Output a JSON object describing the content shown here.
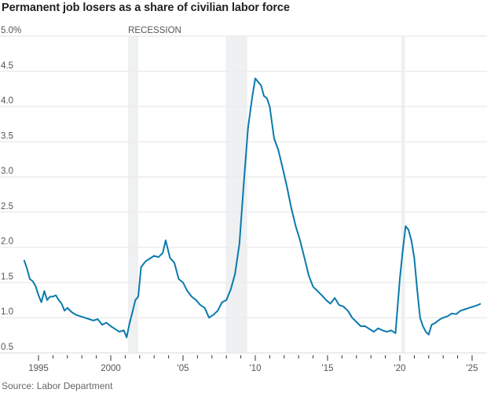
{
  "title": "Permanent job losers as a share of civilian labor force",
  "source": "Source: Labor Department",
  "recession_label": "RECESSION",
  "colors": {
    "line": "#0a7aad",
    "grid": "#ececec",
    "recession": "#eef0f2",
    "text": "#555555"
  },
  "chart_data": {
    "type": "line",
    "title": "Permanent job losers as a share of civilian labor force",
    "xlabel": "",
    "ylabel": "",
    "ylim": [
      0.5,
      5.0
    ],
    "xlim": [
      1993.5,
      2026
    ],
    "grid": true,
    "y_ticks": [
      "5.0%",
      "4.5",
      "4.0",
      "3.5",
      "3.0",
      "2.5",
      "2.0",
      "1.5",
      "1.0",
      "0.5"
    ],
    "y_tick_values": [
      5.0,
      4.5,
      4.0,
      3.5,
      3.0,
      2.5,
      2.0,
      1.5,
      1.0,
      0.5
    ],
    "x_ticks": [
      "1995",
      "2000",
      "'05",
      "'10",
      "'15",
      "'20",
      "'25"
    ],
    "x_tick_values": [
      1995,
      2000,
      2005,
      2010,
      2015,
      2020,
      2025
    ],
    "recessions": [
      [
        2001.2,
        2001.9
      ],
      [
        2007.95,
        2009.45
      ],
      [
        2020.1,
        2020.35
      ]
    ],
    "series": [
      {
        "name": "Permanent job losers (% of civilian labor force)",
        "x": [
          1994.0,
          1994.2,
          1994.4,
          1994.6,
          1994.8,
          1995.0,
          1995.2,
          1995.4,
          1995.6,
          1995.8,
          1996.0,
          1996.2,
          1996.4,
          1996.6,
          1996.8,
          1997.0,
          1997.3,
          1997.6,
          1997.9,
          1998.2,
          1998.5,
          1998.8,
          1999.1,
          1999.4,
          1999.7,
          2000.0,
          2000.3,
          2000.6,
          2000.9,
          2001.1,
          2001.3,
          2001.5,
          2001.7,
          2001.9,
          2002.1,
          2002.4,
          2002.7,
          2003.0,
          2003.3,
          2003.6,
          2003.8,
          2004.1,
          2004.4,
          2004.7,
          2005.0,
          2005.3,
          2005.6,
          2005.9,
          2006.2,
          2006.5,
          2006.8,
          2007.1,
          2007.4,
          2007.7,
          2008.0,
          2008.3,
          2008.6,
          2008.9,
          2009.2,
          2009.5,
          2009.8,
          2010.0,
          2010.2,
          2010.4,
          2010.6,
          2010.8,
          2011.0,
          2011.3,
          2011.6,
          2011.9,
          2012.2,
          2012.5,
          2012.8,
          2013.1,
          2013.4,
          2013.7,
          2014.0,
          2014.3,
          2014.6,
          2014.9,
          2015.2,
          2015.5,
          2015.8,
          2016.1,
          2016.4,
          2016.7,
          2017.0,
          2017.3,
          2017.6,
          2017.9,
          2018.2,
          2018.5,
          2018.8,
          2019.1,
          2019.4,
          2019.7,
          2020.0,
          2020.2,
          2020.4,
          2020.6,
          2020.8,
          2021.0,
          2021.2,
          2021.4,
          2021.6,
          2021.8,
          2022.0,
          2022.2,
          2022.4,
          2022.6,
          2022.8,
          2023.0,
          2023.3,
          2023.6,
          2023.9,
          2024.2,
          2024.5,
          2024.8,
          2025.1,
          2025.4,
          2025.6
        ],
        "y": [
          1.82,
          1.7,
          1.55,
          1.52,
          1.45,
          1.32,
          1.22,
          1.38,
          1.25,
          1.3,
          1.3,
          1.32,
          1.25,
          1.2,
          1.1,
          1.14,
          1.08,
          1.04,
          1.02,
          1.0,
          0.98,
          0.96,
          0.98,
          0.9,
          0.93,
          0.88,
          0.84,
          0.8,
          0.82,
          0.72,
          0.92,
          1.08,
          1.25,
          1.3,
          1.72,
          1.8,
          1.84,
          1.88,
          1.86,
          1.92,
          2.1,
          1.85,
          1.78,
          1.55,
          1.5,
          1.38,
          1.3,
          1.25,
          1.18,
          1.14,
          1.0,
          1.04,
          1.1,
          1.22,
          1.25,
          1.4,
          1.62,
          2.05,
          2.9,
          3.7,
          4.15,
          4.4,
          4.35,
          4.3,
          4.15,
          4.12,
          4.0,
          3.55,
          3.38,
          3.12,
          2.85,
          2.55,
          2.3,
          2.1,
          1.85,
          1.6,
          1.44,
          1.38,
          1.32,
          1.25,
          1.2,
          1.28,
          1.18,
          1.16,
          1.1,
          1.0,
          0.94,
          0.88,
          0.88,
          0.84,
          0.8,
          0.85,
          0.82,
          0.8,
          0.82,
          0.78,
          1.55,
          1.95,
          2.3,
          2.25,
          2.1,
          1.85,
          1.4,
          1.0,
          0.88,
          0.8,
          0.76,
          0.9,
          0.92,
          0.95,
          0.98,
          1.0,
          1.02,
          1.06,
          1.05,
          1.1,
          1.12,
          1.14,
          1.16,
          1.18,
          1.2
        ]
      }
    ]
  }
}
